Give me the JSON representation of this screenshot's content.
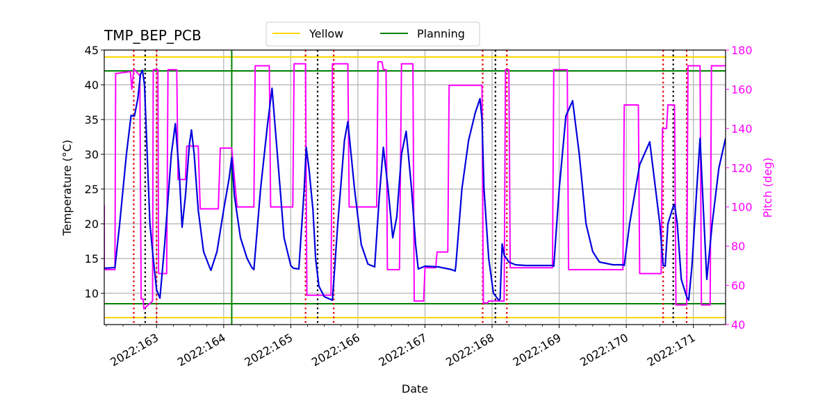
{
  "chart_data": {
    "type": "line",
    "title": "TMP_BEP_PCB",
    "xlabel": "Date",
    "ylabel": "Temperature ($^\\circ$C)",
    "ylabel_display": "Temperature (°C)",
    "y2label": "Pitch (deg)",
    "xlim": [
      162.22,
      171.48
    ],
    "ylim": [
      5.5,
      45
    ],
    "y2lim": [
      40,
      180
    ],
    "xticks": [
      163,
      164,
      165,
      166,
      167,
      168,
      169,
      170,
      171
    ],
    "xtick_labels": [
      "2022:163",
      "2022:164",
      "2022:165",
      "2022:166",
      "2022:167",
      "2022:168",
      "2022:169",
      "2022:170",
      "2022:171"
    ],
    "yticks": [
      10,
      15,
      20,
      25,
      30,
      35,
      40,
      45
    ],
    "y2ticks": [
      40,
      60,
      80,
      100,
      120,
      140,
      160,
      180
    ],
    "grid": true,
    "legend": {
      "placement": "top-center",
      "entries": [
        {
          "label": "Yellow",
          "color": "#ffd700"
        },
        {
          "label": "Planning",
          "color": "#008000"
        }
      ]
    },
    "limits": {
      "yellow": [
        6.5,
        44
      ],
      "planning": [
        8.5,
        42
      ]
    },
    "now_line_x": 164.12,
    "red_dotted_x": [
      162.66,
      163.0,
      165.22,
      165.64,
      167.86,
      168.22,
      170.55,
      170.9
    ],
    "black_dotted_x": [
      162.83,
      165.4,
      168.05,
      170.7
    ],
    "temperature_series": {
      "name": "TMP_BEP_PCB",
      "color": "#0000dd",
      "x": [
        162.22,
        162.38,
        162.45,
        162.55,
        162.62,
        162.67,
        162.72,
        162.76,
        162.79,
        162.82,
        162.86,
        162.9,
        162.95,
        163.0,
        163.05,
        163.12,
        163.22,
        163.28,
        163.34,
        163.38,
        163.43,
        163.49,
        163.52,
        163.56,
        163.62,
        163.7,
        163.78,
        163.81,
        163.9,
        164.0,
        164.08,
        164.12,
        164.16,
        164.25,
        164.35,
        164.42,
        164.45,
        164.55,
        164.65,
        164.72,
        164.8,
        164.9,
        165.0,
        165.04,
        165.12,
        165.2,
        165.23,
        165.27,
        165.33,
        165.37,
        165.42,
        165.5,
        165.6,
        165.62,
        165.7,
        165.8,
        165.85,
        165.95,
        166.05,
        166.15,
        166.25,
        166.32,
        166.38,
        166.45,
        166.52,
        166.58,
        166.65,
        166.72,
        166.8,
        166.86,
        166.9,
        167.0,
        167.2,
        167.4,
        167.45,
        167.46,
        167.55,
        167.65,
        167.75,
        167.82,
        167.85,
        167.88,
        167.95,
        168.02,
        168.1,
        168.12,
        168.15,
        168.18,
        168.25,
        168.35,
        168.5,
        168.7,
        168.9,
        168.92,
        169.0,
        169.1,
        169.2,
        169.3,
        169.4,
        169.5,
        169.6,
        169.8,
        169.95,
        169.97,
        170.05,
        170.2,
        170.35,
        170.5,
        170.55,
        170.58,
        170.62,
        170.7,
        170.72,
        170.76,
        170.82,
        170.9,
        170.93,
        170.98,
        171.05,
        171.1,
        171.15,
        171.2,
        171.28,
        171.38,
        171.48
      ],
      "y": [
        13.6,
        13.7,
        20,
        30,
        35.6,
        35.5,
        38,
        41.5,
        42.1,
        40,
        30,
        20,
        15,
        10.5,
        9.3,
        17,
        30,
        34.4,
        27,
        19.5,
        24,
        31.5,
        33.5,
        30,
        22,
        16,
        14,
        13.3,
        16,
        22,
        26.5,
        29.5,
        24,
        18,
        15,
        13.7,
        13.4,
        25,
        34,
        39.5,
        30,
        18,
        14,
        13.6,
        13.5,
        25,
        31,
        28,
        22,
        15,
        11,
        9.5,
        9.1,
        9,
        20,
        32,
        34.7,
        25,
        17,
        14.2,
        13.8,
        24,
        31,
        25,
        18,
        21,
        30,
        33.3,
        25,
        17,
        13.5,
        13.9,
        13.8,
        13.4,
        13.2,
        14,
        25,
        32,
        36,
        38,
        35,
        25,
        15,
        10,
        9,
        9.2,
        17.1,
        15.5,
        14.5,
        14.1,
        14,
        14,
        14,
        13.9,
        25,
        35.5,
        37.7,
        30,
        20,
        16,
        14.5,
        14.1,
        14.1,
        14,
        20,
        28.5,
        31.8,
        20,
        14,
        13.9,
        20,
        22.5,
        22.8,
        20,
        12,
        9.5,
        9,
        14,
        25,
        32.3,
        22,
        12,
        20,
        28,
        32.3
      ]
    },
    "pitch_series": {
      "name": "Pitch",
      "color": "#ff00ff",
      "x": [
        162.22,
        162.22,
        162.23,
        162.38,
        162.39,
        162.61,
        162.63,
        162.66,
        162.67,
        162.75,
        162.77,
        162.8,
        162.81,
        162.94,
        162.95,
        163.02,
        163.03,
        163.15,
        163.17,
        163.3,
        163.32,
        163.43,
        163.45,
        163.62,
        163.65,
        163.92,
        163.95,
        164.12,
        164.2,
        164.45,
        164.47,
        164.68,
        164.7,
        165.03,
        165.05,
        165.22,
        165.24,
        165.6,
        165.62,
        165.85,
        165.87,
        166.28,
        166.3,
        166.36,
        166.38,
        166.42,
        166.44,
        166.62,
        166.65,
        166.82,
        166.84,
        166.98,
        167.0,
        167.16,
        167.18,
        167.34,
        167.36,
        167.48,
        167.5,
        167.55,
        167.57,
        167.85,
        167.87,
        167.93,
        167.95,
        168.18,
        168.2,
        168.25,
        168.27,
        168.9,
        168.92,
        169.12,
        169.14,
        169.95,
        169.97,
        170.18,
        170.2,
        170.52,
        170.54,
        170.6,
        170.62,
        170.72,
        170.74,
        170.9,
        170.92,
        171.1,
        171.12,
        171.25,
        171.27,
        171.48
      ],
      "y": [
        101,
        68,
        68,
        68,
        168,
        169,
        160,
        170,
        170,
        167,
        53,
        53,
        48,
        52,
        170,
        170,
        66,
        66,
        170,
        170,
        114,
        114,
        131,
        131,
        99,
        99,
        130,
        130,
        100,
        100,
        172,
        172,
        100,
        100,
        173,
        173,
        55,
        55,
        173,
        173,
        100,
        100,
        174,
        174,
        170,
        170,
        68,
        68,
        173,
        173,
        52,
        52,
        69,
        69,
        77,
        77,
        162,
        162,
        162,
        162,
        162,
        162,
        51,
        51,
        52,
        52,
        170,
        170,
        69,
        69,
        170,
        170,
        68,
        68,
        152,
        152,
        66,
        66,
        140,
        140,
        152,
        152,
        50,
        50,
        172,
        172,
        50,
        50,
        172,
        172
      ]
    }
  }
}
